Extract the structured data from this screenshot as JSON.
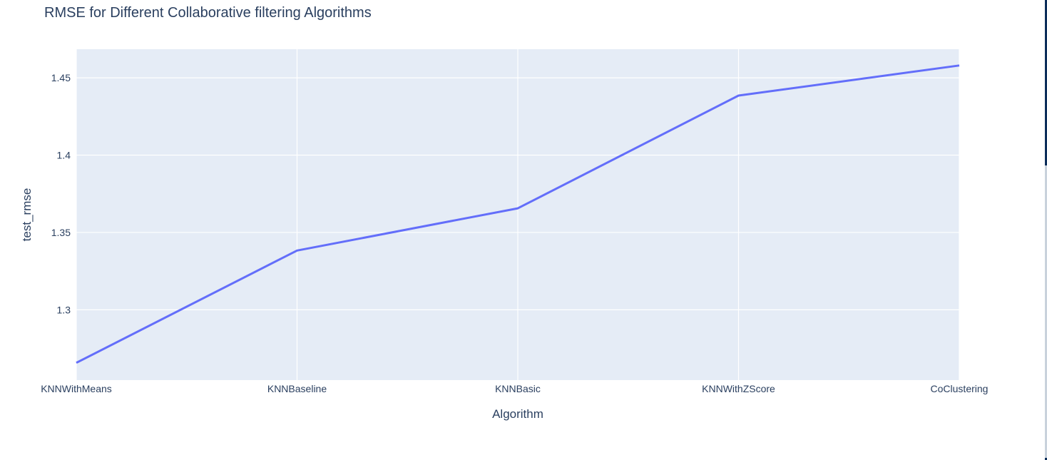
{
  "chart_data": {
    "type": "line",
    "title": "RMSE for Different Collaborative filtering Algorithms",
    "xlabel": "Algorithm",
    "ylabel": "test_rmse",
    "categories": [
      "KNNWithMeans",
      "KNNBaseline",
      "KNNBasic",
      "KNNWithZScore",
      "CoClustering"
    ],
    "series": [
      {
        "values": [
          1.2657,
          1.3383,
          1.3656,
          1.4385,
          1.458
        ],
        "color": "#636efa"
      }
    ],
    "ylim": [
      1.2545,
      1.4685
    ],
    "yticks": [
      1.3,
      1.35,
      1.4,
      1.45
    ],
    "ytick_labels": [
      "1.3",
      "1.35",
      "1.4",
      "1.45"
    ],
    "grid": true,
    "plot_bg_color": "#e5ecf6",
    "grid_color": "#ffffff",
    "text_color": "#2a3f5f"
  }
}
